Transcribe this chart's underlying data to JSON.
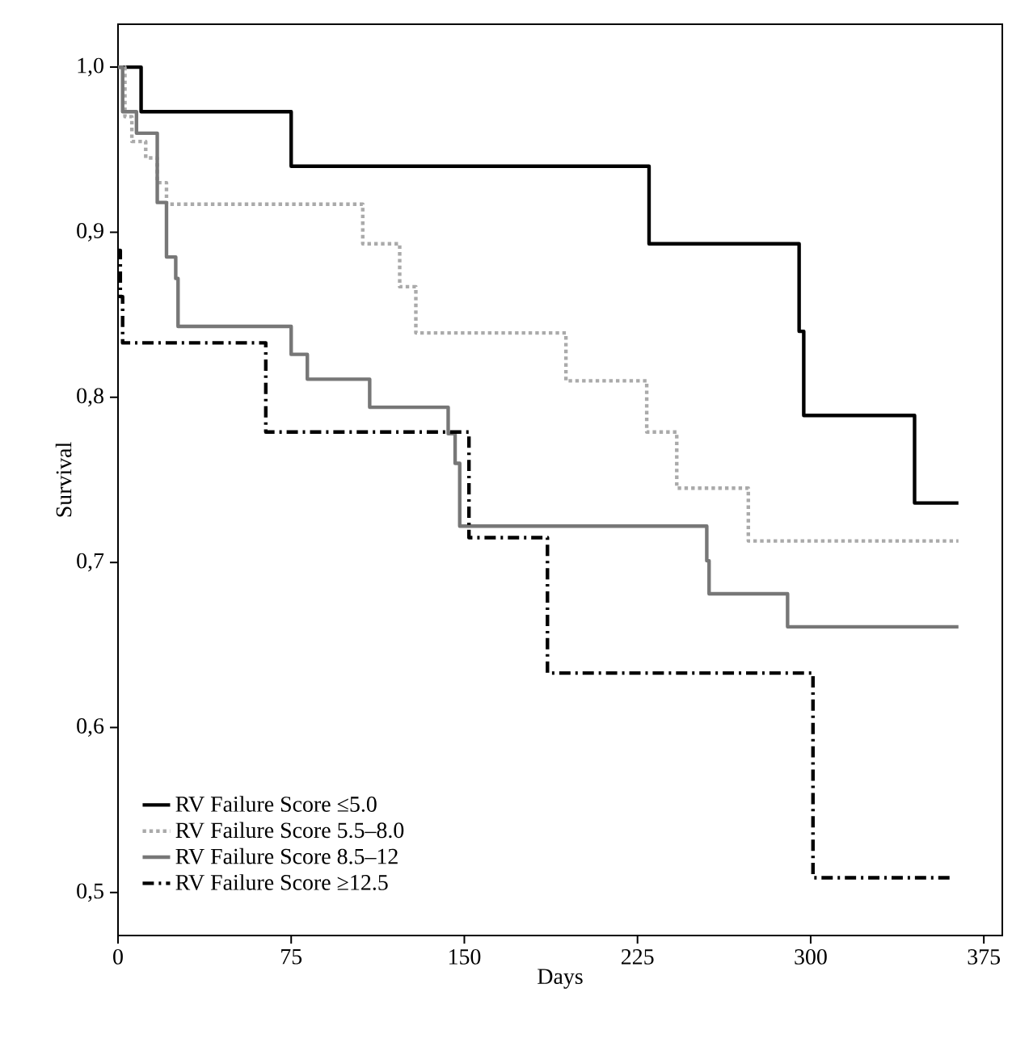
{
  "chart_data": {
    "type": "step",
    "xlabel": "Days",
    "ylabel": "Survival",
    "xlim": [
      0,
      383
    ],
    "ylim": [
      0.474,
      1.026
    ],
    "xticks": [
      0,
      75,
      150,
      225,
      300,
      375
    ],
    "yticks": [
      {
        "value": 0.5,
        "label": "0,5"
      },
      {
        "value": 0.6,
        "label": "0,6"
      },
      {
        "value": 0.7,
        "label": "0,7"
      },
      {
        "value": 0.8,
        "label": "0,8"
      },
      {
        "value": 0.9,
        "label": "0,9"
      },
      {
        "value": 1.0,
        "label": "1,0"
      }
    ],
    "legend": "bottom left",
    "marker": "none",
    "grid": false,
    "series": [
      {
        "name": "RV Failure Score ≤5.0",
        "color": "#000000",
        "line_style": "solid",
        "x": [
          0,
          10,
          75,
          230,
          295,
          297,
          345,
          364
        ],
        "values": [
          1.0,
          0.973,
          0.94,
          0.893,
          0.84,
          0.789,
          0.736,
          0.736
        ]
      },
      {
        "name": "RV Failure Score 5.5–8.0",
        "color": "#aaaaaa",
        "line_style": "dotted",
        "x": [
          0,
          3,
          6,
          12,
          17,
          21,
          106,
          122,
          129,
          194,
          229,
          242,
          273,
          364
        ],
        "values": [
          1.0,
          0.97,
          0.955,
          0.945,
          0.93,
          0.917,
          0.893,
          0.867,
          0.839,
          0.81,
          0.779,
          0.745,
          0.713,
          0.713
        ]
      },
      {
        "name": "RV Failure Score 8.5–12",
        "color": "#777777",
        "line_style": "solid",
        "x": [
          0,
          2,
          8,
          17,
          21,
          25,
          26,
          75,
          82,
          109,
          143,
          146,
          148,
          255,
          256,
          290,
          364
        ],
        "values": [
          1.0,
          0.973,
          0.96,
          0.918,
          0.885,
          0.872,
          0.843,
          0.826,
          0.811,
          0.794,
          0.778,
          0.76,
          0.722,
          0.701,
          0.681,
          0.661,
          0.661
        ]
      },
      {
        "name": "RV Failure Score ≥12.5",
        "color": "#000000",
        "line_style": "dashdot",
        "x": [
          0,
          1,
          2,
          64,
          152,
          186,
          301,
          361
        ],
        "values": [
          0.889,
          0.861,
          0.833,
          0.779,
          0.715,
          0.633,
          0.509,
          0.509
        ]
      }
    ]
  }
}
